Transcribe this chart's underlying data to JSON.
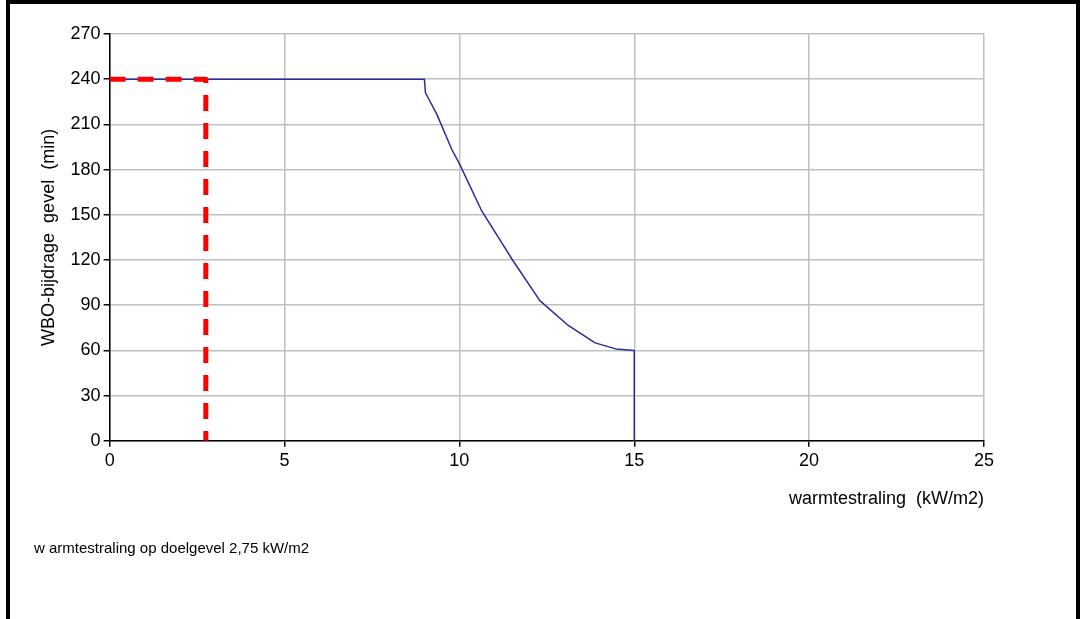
{
  "chart_data": {
    "type": "line",
    "xlabel": "warmtestraling  (kW/m2)",
    "ylabel": "WBO-bijdrage  gevel  (min)",
    "xlim": [
      0,
      25
    ],
    "xticks": [
      0,
      5,
      10,
      15,
      20,
      25
    ],
    "ylim": [
      0,
      270
    ],
    "yticks": [
      0,
      30,
      60,
      90,
      120,
      150,
      180,
      210,
      240,
      270
    ],
    "grid": true,
    "legend": false,
    "marker": "none",
    "series": [
      {
        "color": "#2b2ba0",
        "line_style": "solid",
        "x": [
          0,
          9.0,
          9.03,
          9.35,
          9.79,
          10.0,
          10.63,
          11.52,
          12.3,
          13.09,
          13.88,
          14.47,
          15.0,
          15.0
        ],
        "values": [
          240,
          240,
          231,
          217,
          193,
          184,
          153,
          120,
          93,
          77,
          65,
          61,
          60,
          0
        ]
      },
      {
        "color": "#ff0000",
        "line_style": "dashed",
        "x": [
          0,
          2.75,
          2.75
        ],
        "values": [
          240,
          240,
          0
        ]
      }
    ],
    "annotations": [
      "w armtestraling op doelgevel 2,75 kW/m2"
    ]
  }
}
